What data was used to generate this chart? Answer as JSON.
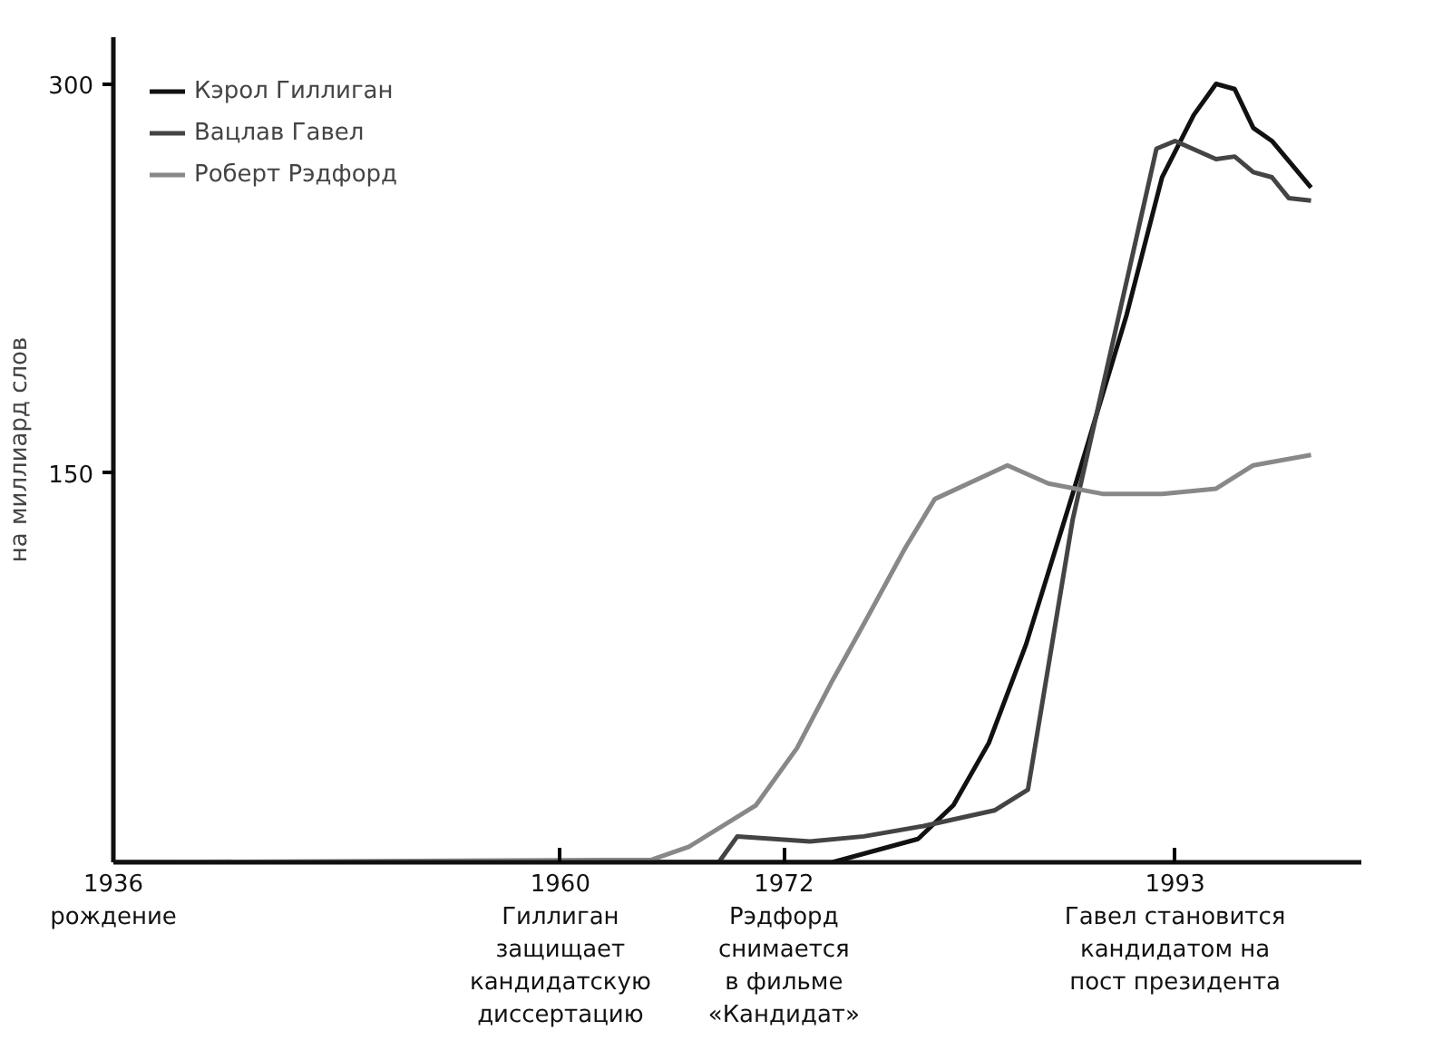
{
  "chart_data": {
    "type": "line",
    "ylabel": "на миллиард слов",
    "xlim": [
      1936,
      2003
    ],
    "ylim": [
      0,
      318
    ],
    "xticks": [
      {
        "value": 1936,
        "label": "1936\nрождение"
      },
      {
        "value": 1960,
        "label": "1960\nГиллиган\nзащищает\nкандидатскую\nдиссертацию"
      },
      {
        "value": 1972,
        "label": "1972\nРэдфорд\nснимается\nв фильме\n«Кандидат»"
      },
      {
        "value": 1993,
        "label": "1993\nГавел становится\nкандидатом на\nпост президента"
      }
    ],
    "yticks": [
      150,
      300
    ],
    "grid": false,
    "legend": "top left",
    "line_style": "solid",
    "series": [
      {
        "name": "Кэрол Гиллиган",
        "color": "#111111",
        "x": [
          1936,
          1974.6,
          1979.2,
          1981.1,
          1983.0,
          1985.0,
          1987.5,
          1990.4,
          1992.3,
          1994.0,
          1995.2,
          1996.2,
          1997.2,
          1998.2,
          2000.3
        ],
        "values": [
          0,
          0,
          9,
          22,
          46,
          84,
          142,
          211,
          264,
          288,
          300,
          298,
          283,
          278,
          260
        ]
      },
      {
        "name": "Вацлав Гавел",
        "color": "#444444",
        "x": [
          1936,
          1968.5,
          1969.5,
          1973.4,
          1976.3,
          1979.5,
          1983.3,
          1985.1,
          1987.5,
          1990.4,
          1992.0,
          1993.0,
          1995.2,
          1996.2,
          1997.2,
          1998.2,
          1999.1,
          2000.3
        ],
        "values": [
          0,
          0,
          10,
          8,
          10,
          14,
          20,
          28,
          132,
          224,
          275,
          278,
          271,
          272,
          266,
          264,
          256,
          255
        ]
      },
      {
        "name": "Роберт Рэдфорд",
        "color": "#888888",
        "x": [
          1936,
          1964.9,
          1966.9,
          1970.5,
          1972.7,
          1974.6,
          1976.3,
          1978.5,
          1980.1,
          1984.0,
          1986.2,
          1989.1,
          1992.3,
          1995.2,
          1997.2,
          2000.3
        ],
        "values": [
          0,
          1,
          6,
          22,
          44,
          70,
          92,
          121,
          140,
          153,
          146,
          142,
          142,
          144,
          153,
          157
        ]
      }
    ]
  }
}
